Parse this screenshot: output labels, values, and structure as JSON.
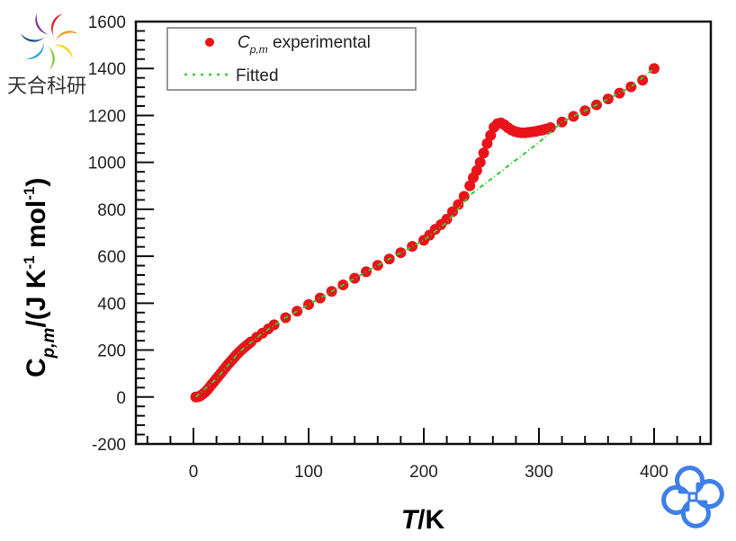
{
  "watermark": {
    "text": "天合科研",
    "logo_icon": "rainbow-pinwheel-icon",
    "corner_logo_icon": "blue-swirl-knot-icon",
    "logo_colors": [
      "#7b3fa0",
      "#e8212b",
      "#f39a1e",
      "#f4d520",
      "#8cc63f",
      "#2aa9e0",
      "#1b4f8c"
    ],
    "corner_logo_color": "#3f7fe8"
  },
  "chart_data": {
    "type": "scatter",
    "title": "",
    "xlabel": "T/K",
    "xlabel_italic_part": "T",
    "xlabel_rest": "/K",
    "ylabel": "C_p,m/(J K^-1 mol^-1)",
    "ylabel_parts": {
      "main": "C",
      "sub": "p,m",
      "rest1": "/(J K",
      "sup1": "-1",
      "rest2": " mol",
      "sup2": "-1",
      "close": ")"
    },
    "xlim": [
      -50,
      450
    ],
    "ylim": [
      -200,
      1600
    ],
    "xticks": [
      0,
      100,
      200,
      300,
      400
    ],
    "xtick_labels": [
      "0",
      "100",
      "200",
      "300",
      "400"
    ],
    "yticks": [
      -200,
      0,
      200,
      400,
      600,
      800,
      1000,
      1200,
      1400,
      1600
    ],
    "ytick_labels": [
      "-200",
      "0",
      "200",
      "400",
      "600",
      "800",
      "1000",
      "1200",
      "1400",
      "1600"
    ],
    "x_minor_step": 20,
    "y_minor_step": 40,
    "grid": false,
    "legend": {
      "position": "top-left",
      "entries": [
        {
          "label_main": "C",
          "label_sub": "p,m",
          "label_rest": " experimental",
          "marker": "circle",
          "color": "#e8141a"
        },
        {
          "label_main": "Fitted",
          "label_sub": "",
          "label_rest": "",
          "marker": "dash-dot-line",
          "color": "#33cc33"
        }
      ]
    },
    "series": [
      {
        "name": "Cp,m experimental",
        "color": "#e8141a",
        "x": [
          2,
          4,
          6,
          8,
          10,
          12,
          14,
          16,
          18,
          20,
          22,
          24,
          26,
          28,
          30,
          32,
          34,
          36,
          38,
          40,
          42,
          44,
          46,
          48,
          50,
          55,
          60,
          65,
          70,
          80,
          90,
          100,
          110,
          120,
          130,
          140,
          150,
          160,
          170,
          180,
          190,
          200,
          205,
          210,
          215,
          220,
          225,
          230,
          235,
          240,
          243,
          246,
          249,
          252,
          255,
          258,
          261,
          264,
          267,
          270,
          273,
          276,
          279,
          282,
          285,
          288,
          291,
          294,
          297,
          300,
          303,
          306,
          310,
          320,
          330,
          340,
          350,
          360,
          370,
          380,
          390,
          400
        ],
        "y": [
          0,
          1,
          5,
          12,
          20,
          30,
          42,
          54,
          66,
          78,
          90,
          102,
          115,
          127,
          139,
          150,
          161,
          172,
          183,
          193,
          202,
          211,
          219,
          227,
          235,
          255,
          272,
          290,
          308,
          338,
          366,
          394,
          422,
          450,
          478,
          506,
          534,
          561,
          588,
          615,
          642,
          668,
          690,
          715,
          735,
          758,
          790,
          820,
          855,
          900,
          935,
          965,
          1000,
          1040,
          1080,
          1115,
          1150,
          1165,
          1168,
          1160,
          1148,
          1138,
          1132,
          1128,
          1126,
          1126,
          1128,
          1130,
          1132,
          1135,
          1138,
          1142,
          1148,
          1172,
          1196,
          1220,
          1245,
          1270,
          1295,
          1322,
          1350,
          1400
        ]
      },
      {
        "name": "Fitted",
        "color": "#33cc33",
        "x": [
          2,
          20,
          40,
          60,
          80,
          100,
          120,
          140,
          160,
          180,
          200,
          220,
          240,
          260,
          280,
          300,
          320,
          340,
          360,
          380,
          400
        ],
        "y": [
          0,
          78,
          193,
          272,
          338,
          394,
          450,
          506,
          561,
          615,
          668,
          745,
          860,
          935,
          1010,
          1085,
          1172,
          1220,
          1270,
          1322,
          1400
        ]
      }
    ]
  }
}
